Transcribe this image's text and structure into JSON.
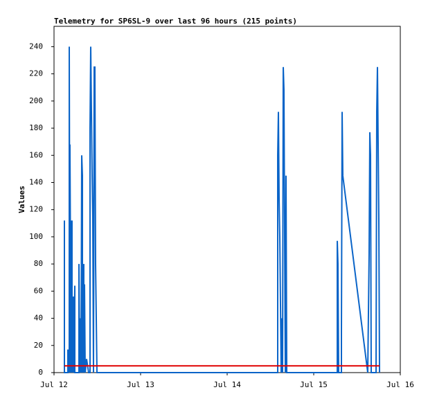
{
  "chart_data": {
    "type": "line",
    "title": "Telemetry for SP6SL-9 over last 96 hours (215 points)",
    "ylabel": "Values",
    "xlim": [
      0,
      4
    ],
    "xticks": [
      {
        "value": 0,
        "label": "Jul 12"
      },
      {
        "value": 1,
        "label": "Jul 13"
      },
      {
        "value": 2,
        "label": "Jul 14"
      },
      {
        "value": 3,
        "label": "Jul 15"
      },
      {
        "value": 4,
        "label": "Jul 16"
      }
    ],
    "ylim": [
      0,
      255
    ],
    "yticks": [
      0,
      20,
      40,
      60,
      80,
      100,
      120,
      140,
      160,
      180,
      200,
      220,
      240
    ],
    "series": [
      {
        "color": "#0a64c8",
        "x": [
          0.12,
          0.12,
          0.12,
          0.16,
          0.16,
          0.176,
          0.176,
          0.184,
          0.184,
          0.192,
          0.192,
          0.2,
          0.208,
          0.208,
          0.224,
          0.224,
          0.24,
          0.24,
          0.256,
          0.288,
          0.288,
          0.296,
          0.304,
          0.312,
          0.32,
          0.328,
          0.328,
          0.344,
          0.344,
          0.352,
          0.36,
          0.376,
          0.4,
          0.416,
          0.416,
          0.424,
          0.432,
          0.44,
          0.448,
          0.456,
          0.464,
          0.472,
          0.48,
          0.488,
          0.496,
          2.584,
          2.584,
          2.592,
          2.6,
          2.608,
          2.616,
          2.624,
          2.632,
          2.64,
          2.648,
          2.656,
          2.664,
          2.672,
          2.68,
          2.688,
          3.272,
          3.272,
          3.28,
          3.288,
          3.32,
          3.32,
          3.328,
          3.336,
          3.624,
          3.64,
          3.648,
          3.656,
          3.664,
          3.72,
          3.728,
          3.736,
          3.752,
          3.76
        ],
        "values": [
          0,
          112,
          0,
          0,
          17,
          0,
          240,
          0,
          168,
          58,
          112,
          0,
          112,
          0,
          56,
          0,
          64,
          0,
          0,
          0,
          80,
          0,
          40,
          0,
          160,
          145,
          0,
          80,
          0,
          65,
          0,
          10,
          0,
          0,
          180,
          240,
          192,
          145,
          112,
          0,
          225,
          225,
          80,
          40,
          0,
          0,
          160,
          192,
          128,
          100,
          50,
          0,
          40,
          0,
          225,
          208,
          100,
          0,
          145,
          0,
          0,
          97,
          80,
          0,
          0,
          30,
          192,
          145,
          0,
          88,
          177,
          160,
          0,
          0,
          192,
          225,
          112,
          0
        ]
      },
      {
        "color": "#e00000",
        "x": [
          0.12,
          3.76
        ],
        "values": [
          5,
          5
        ]
      }
    ]
  }
}
